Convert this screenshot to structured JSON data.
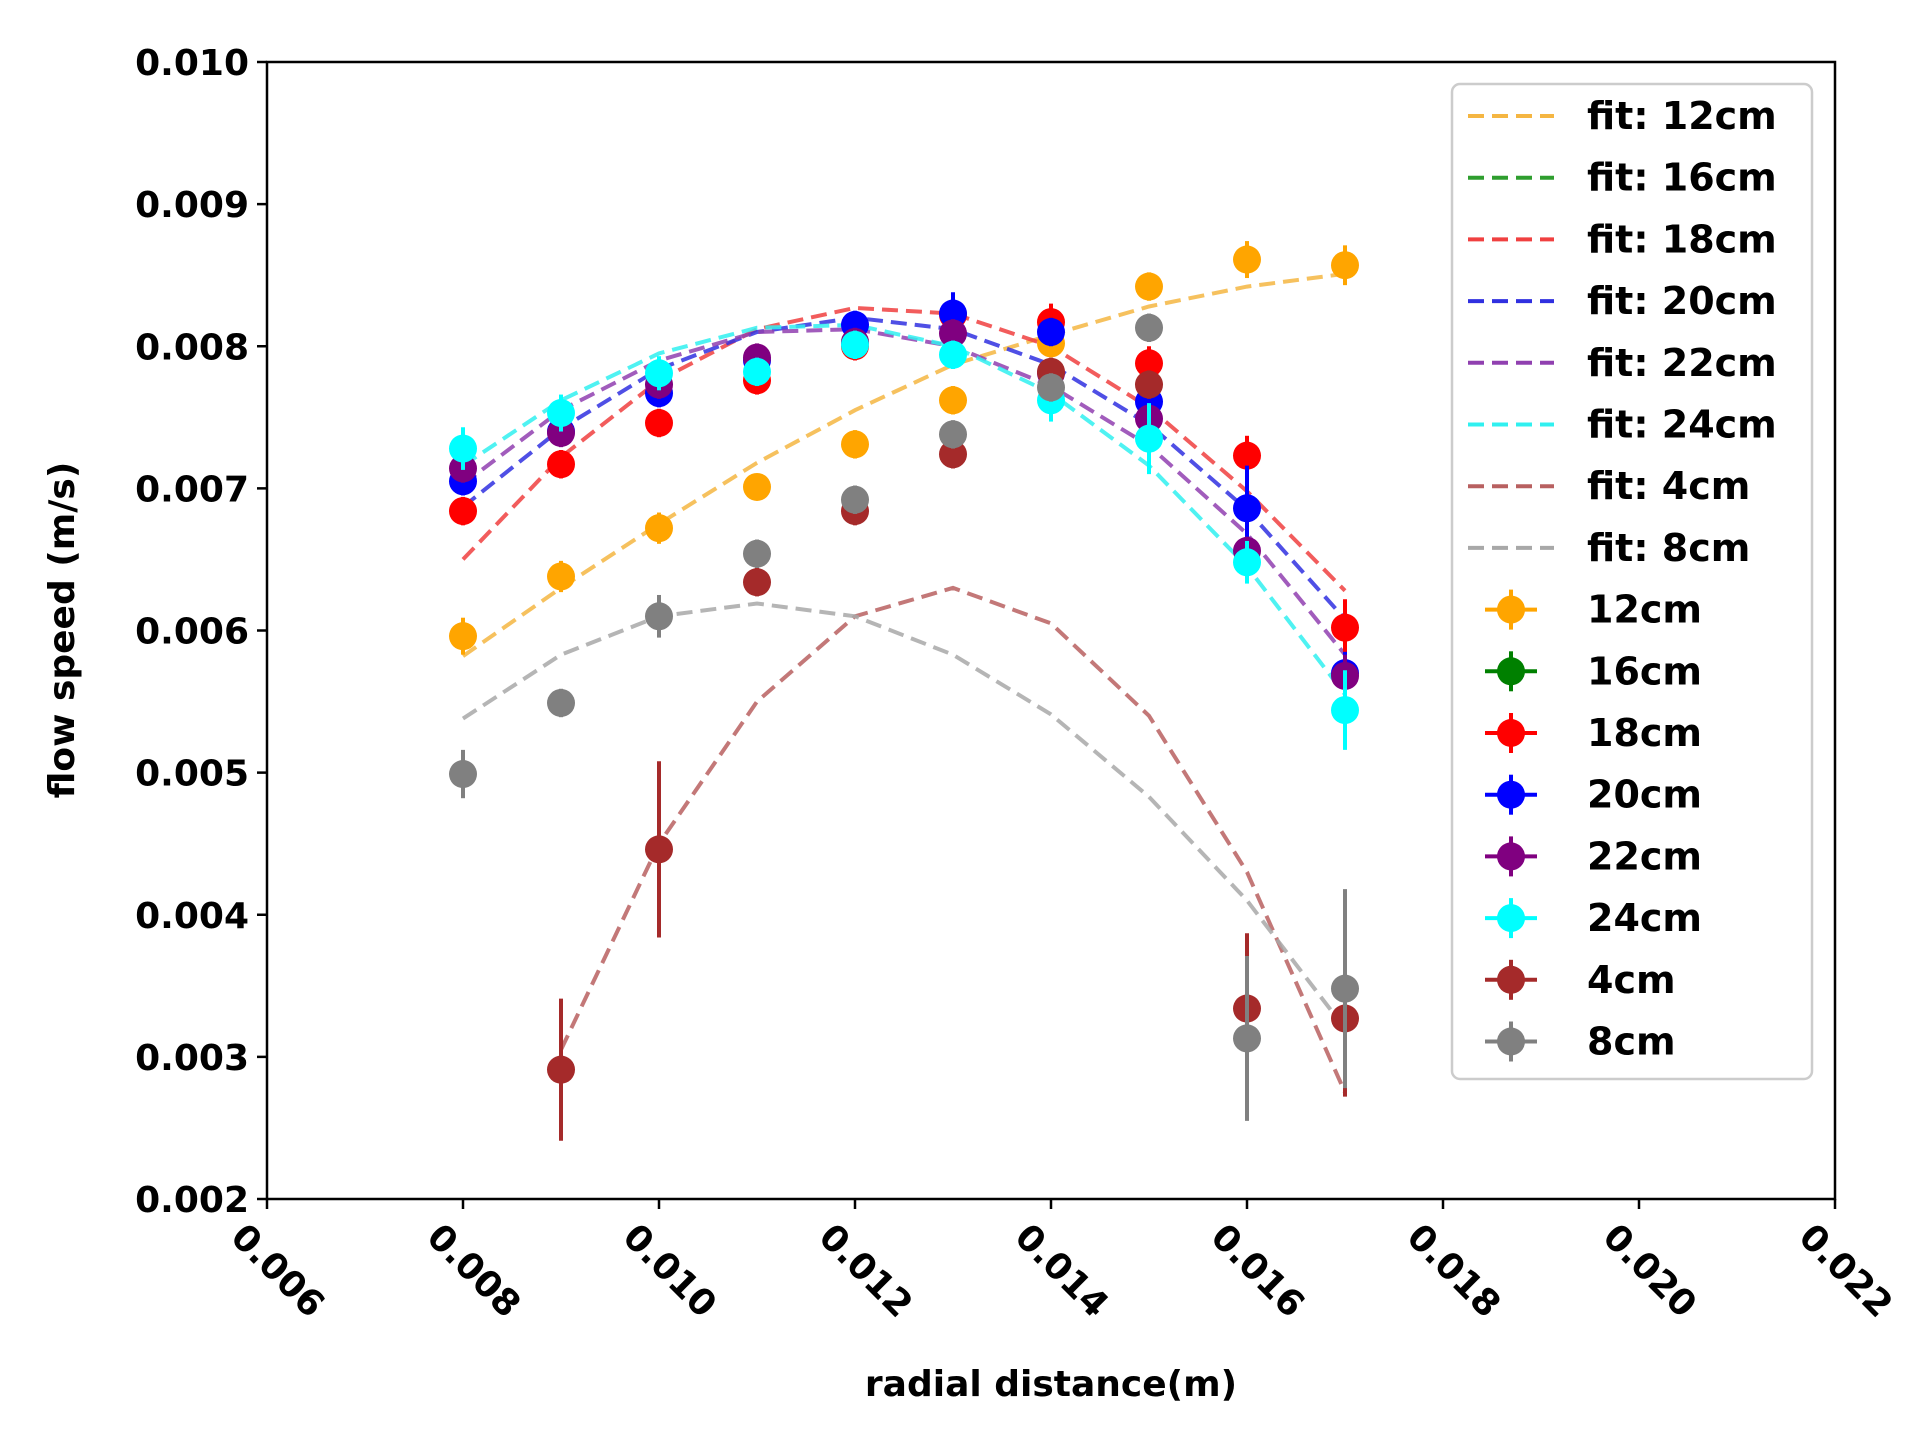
{
  "chart_data": {
    "type": "scatter",
    "xlabel": "radial distance(m)",
    "ylabel": "flow speed (m/s)",
    "xlim": [
      0.006,
      0.022
    ],
    "ylim": [
      0.002,
      0.01
    ],
    "xticks": [
      "0.006",
      "0.008",
      "0.010",
      "0.012",
      "0.014",
      "0.016",
      "0.018",
      "0.020",
      "0.022"
    ],
    "yticks": [
      "0.002",
      "0.003",
      "0.004",
      "0.005",
      "0.006",
      "0.007",
      "0.008",
      "0.009",
      "0.010"
    ],
    "grid": false,
    "legend_position": "top-right",
    "fits": [
      {
        "name": "fit: 12cm",
        "color": "#f5b642",
        "x": [
          0.008,
          0.009,
          0.01,
          0.011,
          0.012,
          0.013,
          0.014,
          0.015,
          0.016,
          0.017
        ],
        "y": [
          0.00582,
          0.0063,
          0.00675,
          0.00718,
          0.00755,
          0.00787,
          0.00808,
          0.00828,
          0.00842,
          0.00851
        ]
      },
      {
        "name": "fit: 16cm",
        "color": "#2e9e2e",
        "x": [],
        "y": []
      },
      {
        "name": "fit: 18cm",
        "color": "#f04040",
        "x": [
          0.008,
          0.009,
          0.01,
          0.011,
          0.012,
          0.013,
          0.014,
          0.015,
          0.016,
          0.017
        ],
        "y": [
          0.0065,
          0.00722,
          0.00776,
          0.00812,
          0.00827,
          0.00823,
          0.008,
          0.00757,
          0.00698,
          0.00628
        ]
      },
      {
        "name": "fit: 20cm",
        "color": "#3030e0",
        "x": [
          0.008,
          0.009,
          0.01,
          0.011,
          0.012,
          0.013,
          0.014,
          0.015,
          0.016,
          0.017
        ],
        "y": [
          0.00687,
          0.00742,
          0.00784,
          0.0081,
          0.0082,
          0.00812,
          0.00787,
          0.00745,
          0.00685,
          0.00608
        ]
      },
      {
        "name": "fit: 22cm",
        "color": "#9040b0",
        "x": [
          0.008,
          0.009,
          0.01,
          0.011,
          0.012,
          0.013,
          0.014,
          0.015,
          0.016,
          0.017
        ],
        "y": [
          0.00703,
          0.00755,
          0.0079,
          0.0081,
          0.00812,
          0.008,
          0.00772,
          0.0073,
          0.00668,
          0.00583
        ]
      },
      {
        "name": "fit: 24cm",
        "color": "#30f0f0",
        "x": [
          0.008,
          0.009,
          0.01,
          0.011,
          0.012,
          0.013,
          0.014,
          0.015,
          0.016,
          0.017
        ],
        "y": [
          0.00716,
          0.00762,
          0.00795,
          0.00813,
          0.00815,
          0.008,
          0.00767,
          0.00716,
          0.00645,
          0.00555
        ]
      },
      {
        "name": "fit: 4cm",
        "color": "#b86060",
        "x": [
          0.009,
          0.01,
          0.011,
          0.012,
          0.013,
          0.014,
          0.015,
          0.016,
          0.017
        ],
        "y": [
          0.00305,
          0.0045,
          0.0055,
          0.0061,
          0.0063,
          0.00605,
          0.0054,
          0.0043,
          0.00275
        ]
      },
      {
        "name": "fit: 8cm",
        "color": "#a8a8a8",
        "x": [
          0.008,
          0.009,
          0.01,
          0.011,
          0.012,
          0.013,
          0.014,
          0.015,
          0.016,
          0.017
        ],
        "y": [
          0.00538,
          0.00583,
          0.0061,
          0.00619,
          0.0061,
          0.00583,
          0.00541,
          0.00483,
          0.0041,
          0.0032
        ]
      }
    ],
    "series": [
      {
        "name": "12cm",
        "color": "#ffa500",
        "x": [
          0.008,
          0.009,
          0.01,
          0.011,
          0.012,
          0.013,
          0.014,
          0.015,
          0.016,
          0.017
        ],
        "y": [
          0.00596,
          0.00638,
          0.00672,
          0.00701,
          0.00731,
          0.00762,
          0.00802,
          0.00842,
          0.00861,
          0.00857
        ],
        "err": [
          0.00013,
          0.00011,
          0.00011,
          8e-05,
          0.0001,
          0.0001,
          9e-05,
          0.0001,
          0.00013,
          0.00014
        ]
      },
      {
        "name": "16cm",
        "color": "#008000",
        "x": [],
        "y": [],
        "err": []
      },
      {
        "name": "18cm",
        "color": "#ff0000",
        "x": [
          0.008,
          0.009,
          0.01,
          0.011,
          0.012,
          0.013,
          0.014,
          0.015,
          0.016,
          0.017
        ],
        "y": [
          0.00684,
          0.00717,
          0.00746,
          0.00776,
          0.008,
          0.00822,
          0.00817,
          0.00788,
          0.00723,
          0.00602
        ],
        "err": [
          0.0001,
          0.0001,
          0.0001,
          0.0001,
          0.0001,
          0.00012,
          0.00013,
          0.00012,
          0.00014,
          0.0002
        ]
      },
      {
        "name": "20cm",
        "color": "#0000ff",
        "x": [
          0.008,
          0.009,
          0.01,
          0.011,
          0.012,
          0.013,
          0.014,
          0.015,
          0.016,
          0.017
        ],
        "y": [
          0.00705,
          0.0074,
          0.00767,
          0.0079,
          0.00815,
          0.00823,
          0.0081,
          0.00761,
          0.00686,
          0.0057
        ],
        "err": [
          0.0001,
          0.0001,
          0.0001,
          0.0001,
          0.0001,
          0.00015,
          0.0001,
          0.00012,
          0.0003,
          0.00015
        ]
      },
      {
        "name": "22cm",
        "color": "#800080",
        "x": [
          0.008,
          0.009,
          0.01,
          0.011,
          0.012,
          0.013,
          0.014,
          0.015,
          0.016,
          0.017
        ],
        "y": [
          0.00714,
          0.00739,
          0.00773,
          0.00792,
          0.00803,
          0.00809,
          0.00781,
          0.00749,
          0.00656,
          0.00568
        ],
        "err": [
          0.0001,
          0.0001,
          0.0001,
          0.0001,
          0.0001,
          0.0001,
          0.0001,
          0.0001,
          0.0001,
          0.00015
        ]
      },
      {
        "name": "24cm",
        "color": "#00ffff",
        "x": [
          0.008,
          0.009,
          0.01,
          0.011,
          0.012,
          0.013,
          0.014,
          0.015,
          0.016,
          0.017
        ],
        "y": [
          0.00728,
          0.00753,
          0.00781,
          0.00782,
          0.00801,
          0.00794,
          0.00762,
          0.00735,
          0.00648,
          0.00544
        ],
        "err": [
          0.00015,
          0.00013,
          0.00012,
          0.0001,
          0.0001,
          0.0001,
          0.00015,
          0.00025,
          0.00015,
          0.00028
        ]
      },
      {
        "name": "4cm",
        "color": "#a52a2a",
        "x": [
          0.009,
          0.01,
          0.011,
          0.012,
          0.013,
          0.014,
          0.015,
          0.016,
          0.017
        ],
        "y": [
          0.00291,
          0.00446,
          0.00634,
          0.00684,
          0.00724,
          0.00782,
          0.00773,
          0.00334,
          0.00327
        ],
        "err": [
          0.0005,
          0.00062,
          0.0001,
          0.0001,
          0.0001,
          0.0001,
          0.0001,
          0.00053,
          0.00055
        ]
      },
      {
        "name": "8cm",
        "color": "#808080",
        "x": [
          0.008,
          0.009,
          0.01,
          0.011,
          0.012,
          0.013,
          0.014,
          0.015,
          0.016,
          0.017
        ],
        "y": [
          0.00499,
          0.00549,
          0.0061,
          0.00654,
          0.00692,
          0.00738,
          0.00771,
          0.00813,
          0.00313,
          0.00348
        ],
        "err": [
          0.00017,
          0.0001,
          0.00015,
          0.0001,
          0.0001,
          0.0001,
          0.0001,
          0.0001,
          0.00058,
          0.0007
        ]
      }
    ]
  }
}
